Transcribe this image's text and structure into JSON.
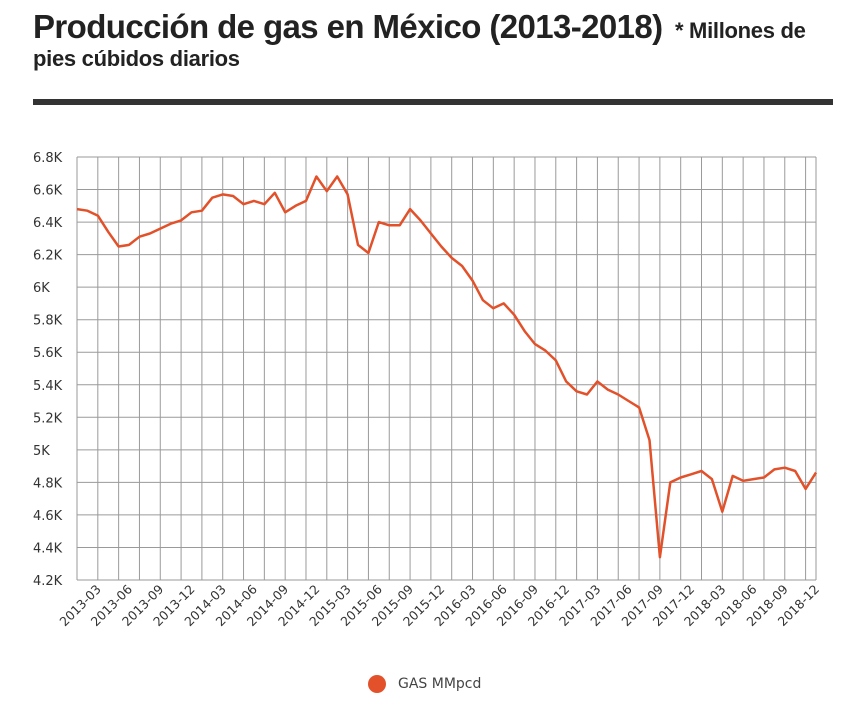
{
  "header": {
    "title": "Producción de gas en México (2013-2018)",
    "subtitle": "* Millones de pies cúbidos diarios"
  },
  "colors": {
    "series": "#e2512a",
    "grid": "#9a9a9a",
    "header_rule": "#333333"
  },
  "chart_data": {
    "type": "line",
    "title": "Producción de gas en México (2013-2018)",
    "ylim": [
      4200,
      6800
    ],
    "y_ticks": [
      4200,
      4400,
      4600,
      4800,
      5000,
      5200,
      5400,
      5600,
      5800,
      6000,
      6200,
      6400,
      6600,
      6800
    ],
    "y_tick_labels": [
      "4.2K",
      "4.4K",
      "4.6K",
      "4.8K",
      "5K",
      "5.2K",
      "5.4K",
      "5.6K",
      "5.8K",
      "6K",
      "6.2K",
      "6.4K",
      "6.6K",
      "6.8K"
    ],
    "x_tick_labels": [
      "2013-03",
      "2013-06",
      "2013-09",
      "2013-12",
      "2014-03",
      "2014-06",
      "2014-09",
      "2014-12",
      "2015-03",
      "2015-06",
      "2015-09",
      "2015-12",
      "2016-03",
      "2016-06",
      "2016-09",
      "2016-12",
      "2017-03",
      "2017-06",
      "2017-09",
      "2017-12",
      "2018-03",
      "2018-06",
      "2018-09",
      "2018-12"
    ],
    "grid": true,
    "legend": "bottom",
    "series": [
      {
        "name": "GAS MMpcd",
        "x": [
          "2013-01",
          "2013-02",
          "2013-03",
          "2013-04",
          "2013-05",
          "2013-06",
          "2013-07",
          "2013-08",
          "2013-09",
          "2013-10",
          "2013-11",
          "2013-12",
          "2014-01",
          "2014-02",
          "2014-03",
          "2014-04",
          "2014-05",
          "2014-06",
          "2014-07",
          "2014-08",
          "2014-09",
          "2014-10",
          "2014-11",
          "2014-12",
          "2015-01",
          "2015-02",
          "2015-03",
          "2015-04",
          "2015-05",
          "2015-06",
          "2015-07",
          "2015-08",
          "2015-09",
          "2015-10",
          "2015-11",
          "2015-12",
          "2016-01",
          "2016-02",
          "2016-03",
          "2016-04",
          "2016-05",
          "2016-06",
          "2016-07",
          "2016-08",
          "2016-09",
          "2016-10",
          "2016-11",
          "2016-12",
          "2017-01",
          "2017-02",
          "2017-03",
          "2017-04",
          "2017-05",
          "2017-06",
          "2017-07",
          "2017-08",
          "2017-09",
          "2017-10",
          "2017-11",
          "2017-12",
          "2018-01",
          "2018-02",
          "2018-03",
          "2018-04",
          "2018-05",
          "2018-06",
          "2018-07",
          "2018-08",
          "2018-09",
          "2018-10",
          "2018-11",
          "2018-12"
        ],
        "values": [
          6480,
          6470,
          6440,
          6340,
          6250,
          6260,
          6310,
          6330,
          6360,
          6390,
          6410,
          6460,
          6470,
          6550,
          6570,
          6560,
          6510,
          6530,
          6510,
          6580,
          6460,
          6500,
          6530,
          6680,
          6590,
          6680,
          6570,
          6260,
          6210,
          6400,
          6380,
          6380,
          6480,
          6410,
          6330,
          6250,
          6180,
          6130,
          6040,
          5920,
          5870,
          5900,
          5830,
          5730,
          5650,
          5610,
          5550,
          5420,
          5360,
          5340,
          5420,
          5370,
          5340,
          5300,
          5260,
          5060,
          4340,
          4800,
          4830,
          4850,
          4870,
          4820,
          4620,
          4840,
          4810,
          4820,
          4830,
          4880,
          4890,
          4870,
          4760,
          4860
        ]
      }
    ]
  }
}
